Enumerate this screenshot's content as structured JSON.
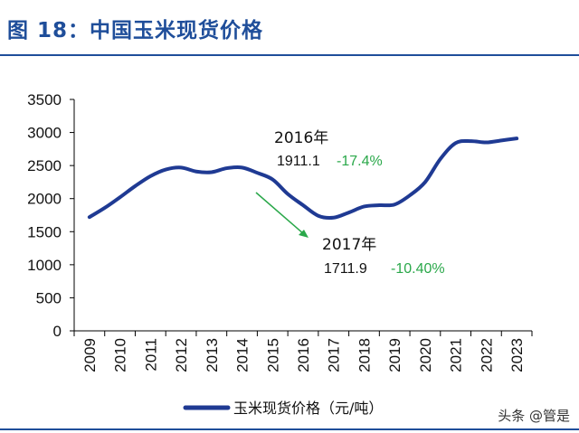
{
  "header": {
    "title": "图 18：中国玉米现货价格"
  },
  "watermark": "头条 @管是",
  "colors": {
    "line": "#1f3a93",
    "positive_change": "#2aa84a",
    "arrow": "#2aa84a",
    "title": "#1f4e9a"
  },
  "chart_data": {
    "type": "line",
    "title": "",
    "xlabel": "",
    "ylabel": "",
    "categories": [
      "2009",
      "2010",
      "2011",
      "2012",
      "2013",
      "2014",
      "2015",
      "2016",
      "2017",
      "2018",
      "2019",
      "2020",
      "2021",
      "2022",
      "2023"
    ],
    "x": [
      2009.0,
      2009.5,
      2010.0,
      2010.5,
      2011.0,
      2011.5,
      2012.0,
      2012.5,
      2013.0,
      2013.5,
      2014.0,
      2014.5,
      2015.0,
      2015.5,
      2016.0,
      2016.5,
      2017.0,
      2017.5,
      2018.0,
      2018.5,
      2019.0,
      2019.5,
      2020.0,
      2020.5,
      2021.0,
      2021.5,
      2022.0,
      2022.5,
      2023.0
    ],
    "series": [
      {
        "name": "玉米现货价格（元/吨）",
        "values": [
          1720,
          1860,
          2020,
          2190,
          2340,
          2440,
          2470,
          2410,
          2400,
          2460,
          2470,
          2390,
          2290,
          2070,
          1900,
          1740,
          1712,
          1790,
          1880,
          1900,
          1911,
          2050,
          2250,
          2600,
          2840,
          2870,
          2850,
          2880,
          2910
        ]
      }
    ],
    "ylim": [
      0,
      3500
    ],
    "yticks": [
      0,
      500,
      1000,
      1500,
      2000,
      2500,
      3000,
      3500
    ],
    "grid": false,
    "legend": "bottom",
    "annotations": [
      {
        "year": "2016年",
        "value": "1911.1",
        "change": "-17.4%"
      },
      {
        "year": "2017年",
        "value": "1711.9",
        "change": "-10.40%"
      }
    ]
  }
}
